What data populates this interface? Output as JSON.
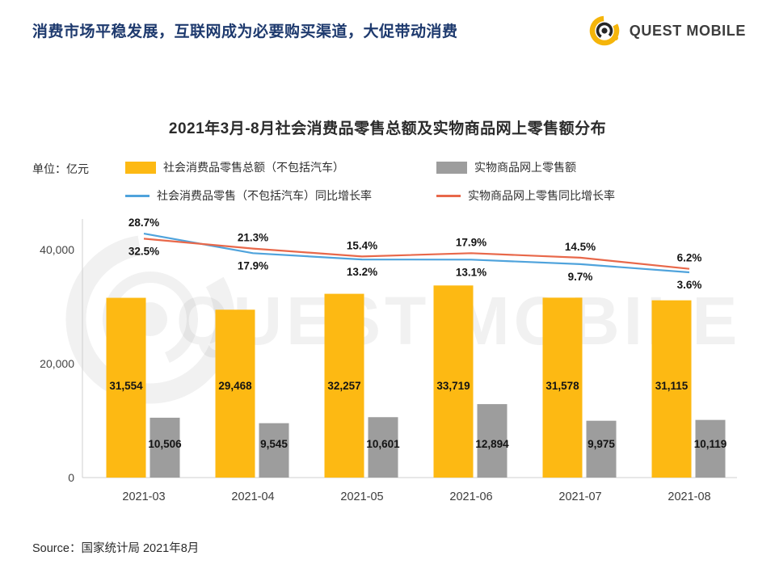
{
  "header": {
    "title": "消费市场平稳发展，互联网成为必要购买渠道，大促带动消费",
    "logo_text": "QUEST MOBILE"
  },
  "colors": {
    "header_navy": "#1E3A6E",
    "logo_yellow": "#F5B50A",
    "bar_yellow": "#FDB913",
    "bar_gray": "#9D9D9D",
    "line_blue": "#4FA3DC",
    "line_red": "#E8684A"
  },
  "chart": {
    "title": "2021年3月-8月社会消费品零售总额及实物商品网上零售额分布",
    "unit_label": "单位：亿元"
  },
  "watermark_text": "QUEST MOBILE",
  "source": "Source：国家统计局 2021年8月",
  "chart_data": {
    "type": "bar",
    "subtype": "grouped bars with two percentage growth lines",
    "title": "2021年3月-8月社会消费品零售总额及实物商品网上零售额分布",
    "xlabel": "",
    "ylabel": "单位：亿元",
    "categories": [
      "2021-03",
      "2021-04",
      "2021-05",
      "2021-06",
      "2021-07",
      "2021-08"
    ],
    "bar_series": [
      {
        "name": "社会消费品零售总额（不包括汽车）",
        "color": "#FDB913",
        "values": [
          31554,
          29468,
          32257,
          33719,
          31578,
          31115
        ]
      },
      {
        "name": "实物商品网上零售额",
        "color": "#9D9D9D",
        "values": [
          10506,
          9545,
          10601,
          12894,
          9975,
          10119
        ]
      }
    ],
    "line_series": [
      {
        "name": "社会消费品零售（不包括汽车）同比增长率",
        "color": "#4FA3DC",
        "unit": "%",
        "values": [
          32.5,
          17.9,
          13.2,
          13.1,
          9.7,
          3.6
        ]
      },
      {
        "name": "实物商品网上零售同比增长率",
        "color": "#E8684A",
        "unit": "%",
        "values": [
          28.7,
          21.3,
          15.4,
          17.9,
          14.5,
          6.2
        ]
      }
    ],
    "y_axis": {
      "ticks": [
        "0",
        "20,000",
        "40,000"
      ],
      "tick_values": [
        0,
        20000,
        40000
      ],
      "ylim": [
        0,
        46000
      ]
    },
    "grid": false,
    "legend_position": "top"
  }
}
